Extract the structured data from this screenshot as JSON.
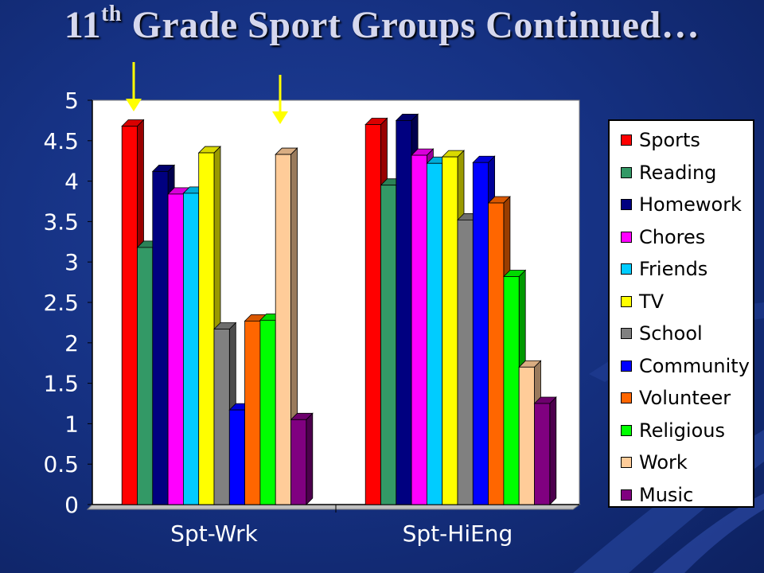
{
  "slide": {
    "title_main": "11",
    "title_sup": "th",
    "title_rest": " Grade Sport Groups Continued…"
  },
  "chart_data": {
    "type": "bar",
    "title": "",
    "xlabel": "",
    "ylabel": "",
    "ylim": [
      0,
      5
    ],
    "yticks": [
      "0",
      "0.5",
      "1",
      "1.5",
      "2",
      "2.5",
      "3",
      "3.5",
      "4",
      "4.5",
      "5"
    ],
    "categories": [
      "Spt-Wrk",
      "Spt-HiEng"
    ],
    "grid": false,
    "legend_position": "right",
    "series": [
      {
        "name": "Sports",
        "color": "#ff0000",
        "values": [
          4.68,
          4.7
        ]
      },
      {
        "name": "Reading",
        "color": "#339966",
        "values": [
          3.18,
          3.95
        ]
      },
      {
        "name": "Homework",
        "color": "#000080",
        "values": [
          4.12,
          4.75
        ]
      },
      {
        "name": "Chores",
        "color": "#ff00ff",
        "values": [
          3.84,
          4.32
        ]
      },
      {
        "name": "Friends",
        "color": "#00ccff",
        "values": [
          3.85,
          4.22
        ]
      },
      {
        "name": "TV",
        "color": "#ffff00",
        "values": [
          4.35,
          4.3
        ]
      },
      {
        "name": "School",
        "color": "#808080",
        "values": [
          2.17,
          3.52
        ]
      },
      {
        "name": "Community",
        "color": "#0000ff",
        "values": [
          1.17,
          4.23
        ]
      },
      {
        "name": "Volunteer",
        "color": "#ff6600",
        "values": [
          2.27,
          3.73
        ]
      },
      {
        "name": "Religious",
        "color": "#00ff00",
        "values": [
          2.28,
          2.82
        ]
      },
      {
        "name": "Work",
        "color": "#ffcc99",
        "values": [
          4.33,
          1.7
        ]
      },
      {
        "name": "Music",
        "color": "#800080",
        "values": [
          1.05,
          1.25
        ]
      }
    ],
    "annotations": [
      "arrow-above-Sports-Spt-Wrk",
      "arrow-above-Work-Spt-Wrk"
    ]
  }
}
